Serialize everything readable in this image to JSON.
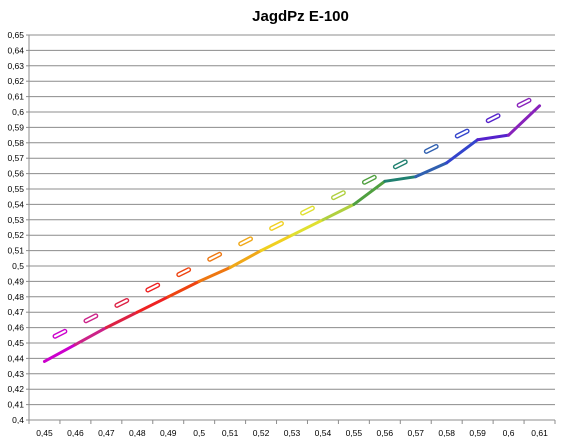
{
  "chart_data": {
    "type": "line",
    "title": "JagdPz E-100",
    "xlabel": "",
    "ylabel": "",
    "x": [
      0.45,
      0.46,
      0.47,
      0.48,
      0.49,
      0.5,
      0.51,
      0.52,
      0.53,
      0.54,
      0.55,
      0.56,
      0.57,
      0.58,
      0.59,
      0.6,
      0.61
    ],
    "x_tick_labels": [
      "0,45",
      "0,46",
      "0,47",
      "0,48",
      "0,49",
      "0,5",
      "0,51",
      "0,52",
      "0,53",
      "0,54",
      "0,55",
      "0,56",
      "0,57",
      "0,58",
      "0,59",
      "0,6",
      "0,61"
    ],
    "y_tick_labels": [
      "0,4",
      "0,41",
      "0,42",
      "0,43",
      "0,44",
      "0,45",
      "0,46",
      "0,47",
      "0,48",
      "0,49",
      "0,5",
      "0,51",
      "0,52",
      "0,53",
      "0,54",
      "0,55",
      "0,56",
      "0,57",
      "0,58",
      "0,59",
      "0,6",
      "0,61",
      "0,62",
      "0,63",
      "0,64",
      "0,65"
    ],
    "ylim": [
      0.4,
      0.65
    ],
    "grid": true,
    "legend": "none",
    "series": [
      {
        "style": "solid",
        "values": [
          0.438,
          0.449,
          0.46,
          0.47,
          0.48,
          0.49,
          0.499,
          0.51,
          0.52,
          0.53,
          0.54,
          0.555,
          0.558,
          0.567,
          0.582,
          0.585,
          0.604
        ]
      },
      {
        "style": "dashed",
        "values": [
          0.451,
          0.461,
          0.471,
          0.481,
          0.491,
          0.501,
          0.511,
          0.521,
          0.531,
          0.541,
          0.551,
          0.561,
          0.571,
          0.581,
          0.591,
          0.601,
          0.611
        ]
      }
    ],
    "segment_colors": [
      "#cc00cc",
      "#cc2288",
      "#dd2244",
      "#ee2222",
      "#ee4411",
      "#ee7711",
      "#f0a818",
      "#f0d020",
      "#e0e030",
      "#b0d040",
      "#50a040",
      "#208070",
      "#3060b0",
      "#3344cc",
      "#5522cc",
      "#8822bb"
    ]
  }
}
